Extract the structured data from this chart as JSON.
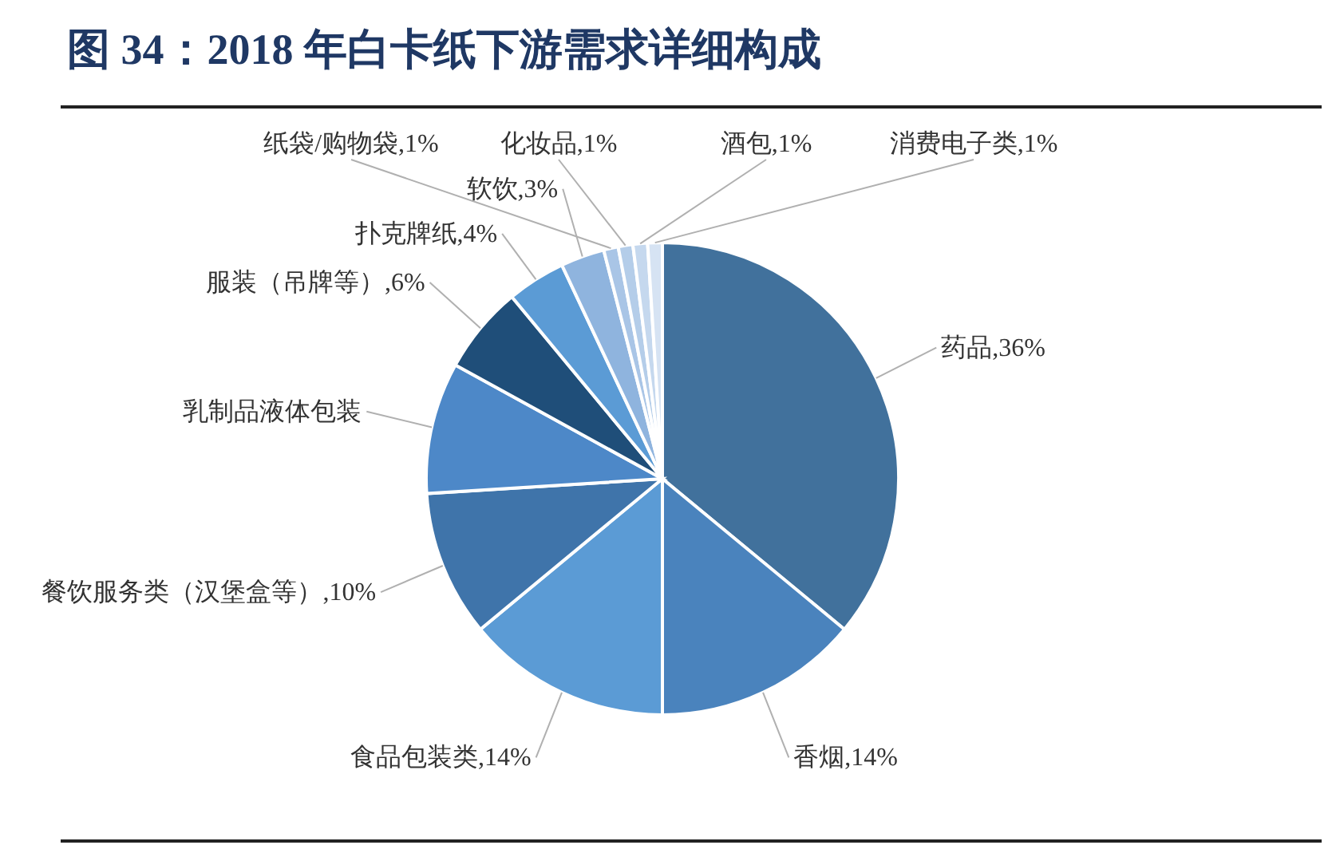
{
  "chart_data": {
    "type": "pie",
    "title": "图 34：2018 年白卡纸下游需求详细构成",
    "categories": [
      "药品",
      "香烟",
      "食品包装类",
      "餐饮服务类（汉堡盒等）",
      "乳制品液体包装",
      "服装（吊牌等）",
      "扑克牌纸",
      "软饮",
      "纸袋/购物袋",
      "化妆品",
      "酒包",
      "消费电子类"
    ],
    "values": [
      36,
      14,
      14,
      10,
      9,
      6,
      4,
      3,
      1,
      1,
      1,
      1
    ],
    "value_labels": [
      "36%",
      "14%",
      "14%",
      "10%",
      null,
      "6%",
      "4%",
      "3%",
      "1%",
      "1%",
      "1%",
      "1%"
    ],
    "colors": [
      "#41719c",
      "#4a83bd",
      "#5b9bd5",
      "#3f74aa",
      "#4d88c8",
      "#1f4e79",
      "#5b9bd5",
      "#8fb4de",
      "#a9c5e6",
      "#b4cde9",
      "#c5d8ee",
      "#d6e3f3"
    ],
    "legend": false
  }
}
